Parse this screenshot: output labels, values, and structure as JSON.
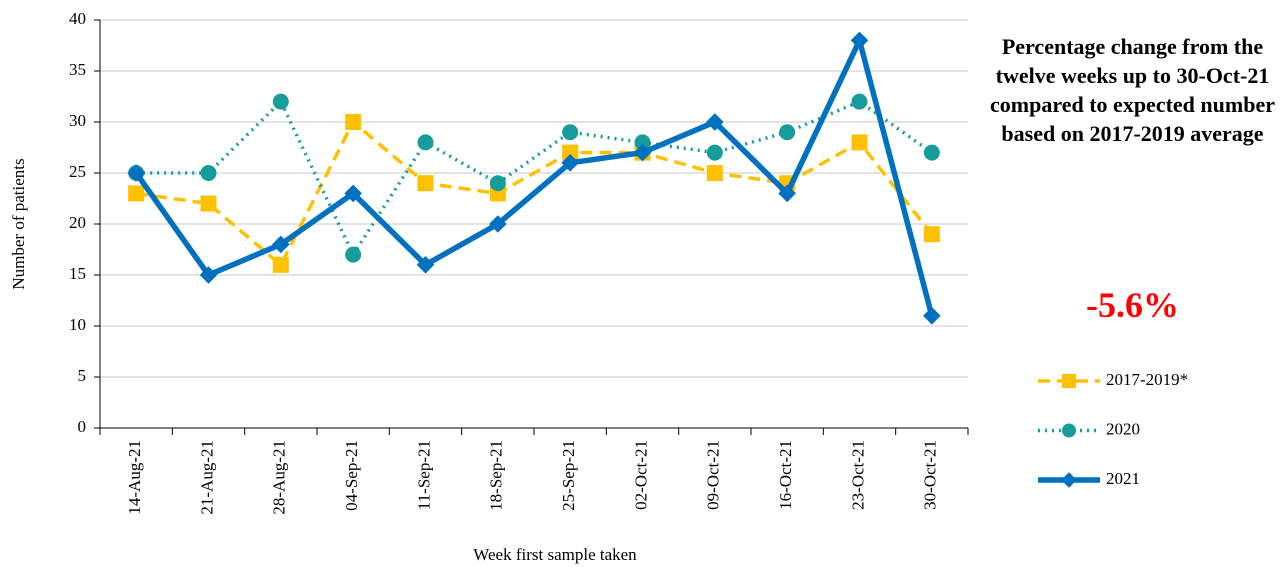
{
  "chart_data": {
    "type": "line",
    "x_label": "Week first sample taken",
    "y_label": "Number of patients",
    "annotation": "Percentage change from the twelve weeks up to 30-Oct-21 compared to expected number based on 2017-2019 average",
    "annotation_value": "-5.6%",
    "categories": [
      "14-Aug-21",
      "21-Aug-21",
      "28-Aug-21",
      "04-Sep-21",
      "11-Sep-21",
      "18-Sep-21",
      "25-Sep-21",
      "02-Oct-21",
      "09-Oct-21",
      "16-Oct-21",
      "23-Oct-21",
      "30-Oct-21"
    ],
    "series": [
      {
        "name": "2017-2019*",
        "color": "#ffc000",
        "line_style": "dashed",
        "marker": "square",
        "values": [
          23,
          22,
          16,
          30,
          24,
          23,
          27,
          27,
          25,
          24,
          28,
          19
        ]
      },
      {
        "name": "2020",
        "color": "#179c9c",
        "line_style": "dotted",
        "marker": "circle",
        "values": [
          25,
          25,
          32,
          17,
          28,
          24,
          29,
          28,
          27,
          29,
          32,
          27
        ]
      },
      {
        "name": "2021",
        "color": "#0070c0",
        "line_style": "solid",
        "marker": "diamond",
        "values": [
          25,
          15,
          18,
          23,
          16,
          20,
          26,
          27,
          30,
          23,
          38,
          11
        ]
      }
    ],
    "ylim": [
      0,
      40
    ],
    "yticks": [
      0,
      5,
      10,
      15,
      20,
      25,
      30,
      35,
      40
    ],
    "grid": true,
    "legend": "bottom-right"
  }
}
